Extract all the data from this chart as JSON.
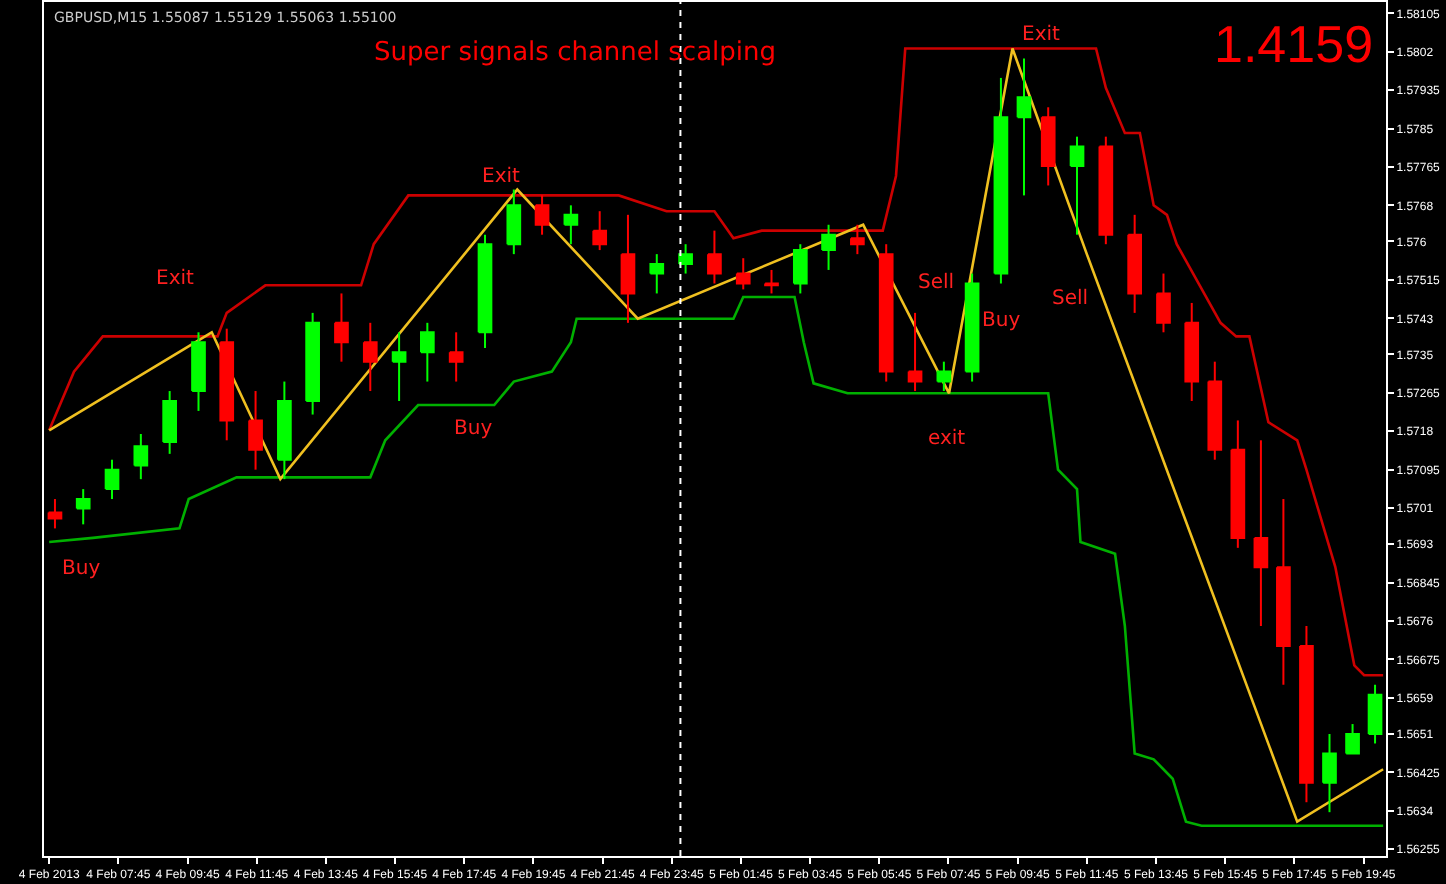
{
  "chart_data": {
    "type": "candlestick",
    "title": "Super signals channel scalping",
    "x": [
      "2013-02-04T05:55",
      "2013-02-04T06:44",
      "2013-02-04T07:34",
      "2013-02-04T08:24",
      "2013-02-04T09:14",
      "2013-02-04T10:04",
      "2013-02-04T10:53",
      "2013-02-04T11:43",
      "2013-02-04T12:33",
      "2013-02-04T13:22",
      "2013-02-04T14:12",
      "2013-02-04T15:02",
      "2013-02-04T15:52",
      "2013-02-04T16:41",
      "2013-02-04T17:31",
      "2013-02-04T18:21",
      "2013-02-04T19:11",
      "2013-02-04T20:00",
      "2013-02-04T20:50",
      "2013-02-04T21:40",
      "2013-02-04T22:29",
      "2013-02-04T23:19",
      "2013-02-05T00:09",
      "2013-02-05T00:59",
      "2013-02-05T01:49",
      "2013-02-05T02:38",
      "2013-02-05T03:28",
      "2013-02-05T04:17",
      "2013-02-05T05:07",
      "2013-02-05T05:57",
      "2013-02-05T06:47",
      "2013-02-05T07:37",
      "2013-02-05T08:26",
      "2013-02-05T09:16",
      "2013-02-05T09:56",
      "2013-02-05T10:38",
      "2013-02-05T11:28",
      "2013-02-05T12:18",
      "2013-02-05T13:08",
      "2013-02-05T13:58",
      "2013-02-05T14:47",
      "2013-02-05T15:27",
      "2013-02-05T16:07",
      "2013-02-05T16:47",
      "2013-02-05T17:26",
      "2013-02-05T18:06",
      "2013-02-05T18:46",
      "2013-02-05T19:26",
      "2013-02-05T20:05"
    ],
    "ohlc": [
      [
        1.57,
        1.5703,
        1.56965,
        1.56987
      ],
      [
        1.57009,
        1.57052,
        1.56974,
        1.5703
      ],
      [
        1.57052,
        1.57117,
        1.5703,
        1.57095
      ],
      [
        1.57104,
        1.57174,
        1.57074,
        1.57147
      ],
      [
        1.57156,
        1.57269,
        1.5713,
        1.57247
      ],
      [
        1.57269,
        1.57399,
        1.57225,
        1.57377
      ],
      [
        1.57377,
        1.57407,
        1.5716,
        1.57204
      ],
      [
        1.57204,
        1.57269,
        1.57095,
        1.57139
      ],
      [
        1.57117,
        1.5729,
        1.57074,
        1.57247
      ],
      [
        1.57247,
        1.57442,
        1.57217,
        1.5742
      ],
      [
        1.5742,
        1.57485,
        1.57334,
        1.57377
      ],
      [
        1.57377,
        1.5742,
        1.57269,
        1.57334
      ],
      [
        1.57334,
        1.57399,
        1.57247,
        1.57355
      ],
      [
        1.57355,
        1.5742,
        1.5729,
        1.57399
      ],
      [
        1.57355,
        1.57399,
        1.5729,
        1.57334
      ],
      [
        1.57399,
        1.57615,
        1.57364,
        1.57594
      ],
      [
        1.57594,
        1.57715,
        1.57572,
        1.5768
      ],
      [
        1.5768,
        1.57702,
        1.57615,
        1.57637
      ],
      [
        1.57637,
        1.5768,
        1.57594,
        1.57659
      ],
      [
        1.57624,
        1.57667,
        1.57581,
        1.57594
      ],
      [
        1.57572,
        1.57659,
        1.5742,
        1.57485
      ],
      [
        1.57529,
        1.57572,
        1.57485,
        1.5755
      ],
      [
        1.5755,
        1.57594,
        1.57529,
        1.57572
      ],
      [
        1.57572,
        1.57624,
        1.57507,
        1.57529
      ],
      [
        1.57529,
        1.57563,
        1.57494,
        1.57507
      ],
      [
        1.57507,
        1.57537,
        1.57485,
        1.57503
      ],
      [
        1.57507,
        1.57594,
        1.57485,
        1.57581
      ],
      [
        1.57581,
        1.57637,
        1.57537,
        1.57615
      ],
      [
        1.57607,
        1.57637,
        1.57572,
        1.57594
      ],
      [
        1.57572,
        1.57594,
        1.5729,
        1.57312
      ],
      [
        1.57312,
        1.57442,
        1.57269,
        1.5729
      ],
      [
        1.5729,
        1.57334,
        1.57269,
        1.57312
      ],
      [
        1.57312,
        1.57529,
        1.5729,
        1.57507
      ],
      [
        1.57529,
        1.57962,
        1.57507,
        1.57875
      ],
      [
        1.57875,
        1.58005,
        1.57702,
        1.57919
      ],
      [
        1.57875,
        1.57897,
        1.57724,
        1.57767
      ],
      [
        1.57767,
        1.57832,
        1.57615,
        1.5781
      ],
      [
        1.5781,
        1.57832,
        1.57594,
        1.57615
      ],
      [
        1.57615,
        1.57659,
        1.57442,
        1.57485
      ],
      [
        1.57485,
        1.57529,
        1.57399,
        1.5742
      ],
      [
        1.5742,
        1.57464,
        1.57247,
        1.5729
      ],
      [
        1.5729,
        1.57334,
        1.57117,
        1.57139
      ],
      [
        1.57139,
        1.57204,
        1.56922,
        1.56944
      ],
      [
        1.56944,
        1.5716,
        1.56749,
        1.56879
      ],
      [
        1.56879,
        1.5703,
        1.56619,
        1.56705
      ],
      [
        1.56705,
        1.56749,
        1.56359,
        1.56402
      ],
      [
        1.56402,
        1.5651,
        1.56337,
        1.56467
      ],
      [
        1.56467,
        1.56532,
        1.56467,
        1.5651
      ],
      [
        1.5651,
        1.56619,
        1.56489,
        1.56597
      ]
    ],
    "colors": [
      "#ff0000",
      "#00ff00",
      "#00ff00",
      "#00ff00",
      "#00ff00",
      "#00ff00",
      "#ff0000",
      "#ff0000",
      "#00ff00",
      "#00ff00",
      "#ff0000",
      "#ff0000",
      "#00ff00",
      "#00ff00",
      "#ff0000",
      "#00ff00",
      "#00ff00",
      "#ff0000",
      "#00ff00",
      "#ff0000",
      "#ff0000",
      "#00ff00",
      "#00ff00",
      "#ff0000",
      "#ff0000",
      "#ff0000",
      "#00ff00",
      "#00ff00",
      "#ff0000",
      "#ff0000",
      "#ff0000",
      "#00ff00",
      "#00ff00",
      "#00ff00",
      "#00ff00",
      "#ff0000",
      "#00ff00",
      "#ff0000",
      "#ff0000",
      "#ff0000",
      "#ff0000",
      "#ff0000",
      "#ff0000",
      "#ff0000",
      "#ff0000",
      "#ff0000",
      "#00ff00",
      "#00ff00",
      "#00ff00"
    ],
    "series": [
      {
        "type": "line",
        "color": "#cc0000",
        "x": [
          "2013-02-04T05:45",
          "2013-02-04T06:28",
          "2013-02-04T07:18",
          "2013-02-04T10:37",
          "2013-02-04T10:53",
          "2013-02-04T12:00",
          "2013-02-04T14:46",
          "2013-02-04T15:08",
          "2013-02-04T16:08",
          "2013-02-04T22:13",
          "2013-02-04T23:36",
          "2013-02-05T00:59",
          "2013-02-05T01:32",
          "2013-02-05T02:21",
          "2013-02-05T05:51",
          "2013-02-05T06:14",
          "2013-02-05T06:30",
          "2013-02-05T12:01",
          "2013-02-05T12:18",
          "2013-02-05T12:51",
          "2013-02-05T13:17",
          "2013-02-05T13:41",
          "2013-02-05T14:04",
          "2013-02-05T14:21",
          "2013-02-05T15:37",
          "2013-02-05T16:04",
          "2013-02-05T16:27",
          "2013-02-05T17:00",
          "2013-02-05T17:50",
          "2013-02-05T18:06",
          "2013-02-05T18:56",
          "2013-02-05T19:29",
          "2013-02-05T19:46",
          "2013-02-05T20:19"
        ],
        "values": [
          1.57182,
          1.57312,
          1.5739,
          1.5739,
          1.57442,
          1.57503,
          1.57503,
          1.57594,
          1.57702,
          1.57702,
          1.57667,
          1.57667,
          1.57607,
          1.57624,
          1.57624,
          1.57745,
          1.58027,
          1.58027,
          1.5794,
          1.5784,
          1.5784,
          1.5768,
          1.57659,
          1.57594,
          1.5742,
          1.5739,
          1.5739,
          1.572,
          1.5716,
          1.57095,
          1.5688,
          1.56662,
          1.5664,
          1.5664
        ]
      },
      {
        "type": "line",
        "color": "#00b000",
        "x": [
          "2013-02-04T05:45",
          "2013-02-04T07:01",
          "2013-02-04T09:31",
          "2013-02-04T09:47",
          "2013-02-04T11:10",
          "2013-02-04T15:02",
          "2013-02-04T15:28",
          "2013-02-04T16:25",
          "2013-02-04T18:37",
          "2013-02-04T19:11",
          "2013-02-04T20:17",
          "2013-02-04T20:50",
          "2013-02-04T21:00",
          "2013-02-05T01:32",
          "2013-02-05T01:49",
          "2013-02-05T03:18",
          "2013-02-05T03:34",
          "2013-02-05T03:51",
          "2013-02-05T04:50",
          "2013-02-05T10:38",
          "2013-02-05T10:55",
          "2013-02-05T11:28",
          "2013-02-05T11:34",
          "2013-02-05T12:34",
          "2013-02-05T12:51",
          "2013-02-05T13:08",
          "2013-02-05T13:41",
          "2013-02-05T14:14",
          "2013-02-05T14:37",
          "2013-02-05T15:04",
          "2013-02-05T20:19"
        ],
        "values": [
          1.56935,
          1.56944,
          1.56965,
          1.5703,
          1.57078,
          1.57078,
          1.5716,
          1.57238,
          1.57238,
          1.5729,
          1.57312,
          1.57377,
          1.57429,
          1.57429,
          1.57477,
          1.57477,
          1.57377,
          1.57286,
          1.57264,
          1.57264,
          1.57095,
          1.57052,
          1.56935,
          1.56909,
          1.56749,
          1.56467,
          1.56454,
          1.56411,
          1.56316,
          1.56307,
          1.56307
        ]
      },
      {
        "type": "line",
        "color": "#f0c020",
        "x": [
          "2013-02-04T05:45",
          "2013-02-04T10:27",
          "2013-02-04T12:26",
          "2013-02-04T19:17",
          "2013-02-04T22:46",
          "2013-02-05T05:17",
          "2013-02-05T07:46",
          "2013-02-05T09:36",
          "2013-02-05T11:45",
          "2013-02-05T17:50",
          "2013-02-05T20:19"
        ],
        "values": [
          1.57182,
          1.57399,
          1.57074,
          1.57715,
          1.57429,
          1.57637,
          1.57264,
          1.58027,
          1.57572,
          1.56316,
          1.56432
        ]
      }
    ],
    "xlim": [
      "2013-02-04T05:36",
      "2013-02-05T20:24"
    ],
    "xticks": [
      {
        "value": "2013-02-04T05:45",
        "label": "4 Feb 2013"
      },
      {
        "value": "2013-02-04T07:45",
        "label": "4 Feb 07:45"
      },
      {
        "value": "2013-02-04T09:45",
        "label": "4 Feb 09:45"
      },
      {
        "value": "2013-02-04T11:45",
        "label": "4 Feb 11:45"
      },
      {
        "value": "2013-02-04T13:45",
        "label": "4 Feb 13:45"
      },
      {
        "value": "2013-02-04T15:45",
        "label": "4 Feb 15:45"
      },
      {
        "value": "2013-02-04T17:45",
        "label": "4 Feb 17:45"
      },
      {
        "value": "2013-02-04T19:45",
        "label": "4 Feb 19:45"
      },
      {
        "value": "2013-02-04T21:45",
        "label": "4 Feb 21:45"
      },
      {
        "value": "2013-02-04T23:45",
        "label": "4 Feb 23:45"
      },
      {
        "value": "2013-02-05T01:45",
        "label": "5 Feb 01:45"
      },
      {
        "value": "2013-02-05T03:45",
        "label": "5 Feb 03:45"
      },
      {
        "value": "2013-02-05T05:45",
        "label": "5 Feb 05:45"
      },
      {
        "value": "2013-02-05T07:45",
        "label": "5 Feb 07:45"
      },
      {
        "value": "2013-02-05T09:45",
        "label": "5 Feb 09:45"
      },
      {
        "value": "2013-02-05T11:45",
        "label": "5 Feb 11:45"
      },
      {
        "value": "2013-02-05T13:45",
        "label": "5 Feb 13:45"
      },
      {
        "value": "2013-02-05T15:45",
        "label": "5 Feb 15:45"
      },
      {
        "value": "2013-02-05T17:45",
        "label": "5 Feb 17:45"
      },
      {
        "value": "2013-02-05T19:45",
        "label": "5 Feb 19:45"
      }
    ],
    "ylim": [
      1.5624,
      1.5813
    ],
    "yticks": [
      1.58105,
      1.5802,
      1.57935,
      1.5785,
      1.57765,
      1.5768,
      1.576,
      1.57515,
      1.5743,
      1.5735,
      1.57265,
      1.5718,
      1.57095,
      1.5701,
      1.5693,
      1.56845,
      1.5676,
      1.56675,
      1.5659,
      1.5651,
      1.56425,
      1.5634,
      1.56255
    ],
    "ref_lines": [
      {
        "axis": "x",
        "value": "2013-02-05T00:00",
        "color": "#ffffff",
        "line_style": "dotted"
      }
    ],
    "annotations": [
      "GBPUSD,M15 1.55087 1.55129 1.55063 1.55100",
      "1.4159",
      "Exit",
      "Buy",
      "Exit",
      "Buy",
      "Exit",
      "Sell",
      "Buy",
      "exit",
      "Sell"
    ],
    "grid": false
  }
}
